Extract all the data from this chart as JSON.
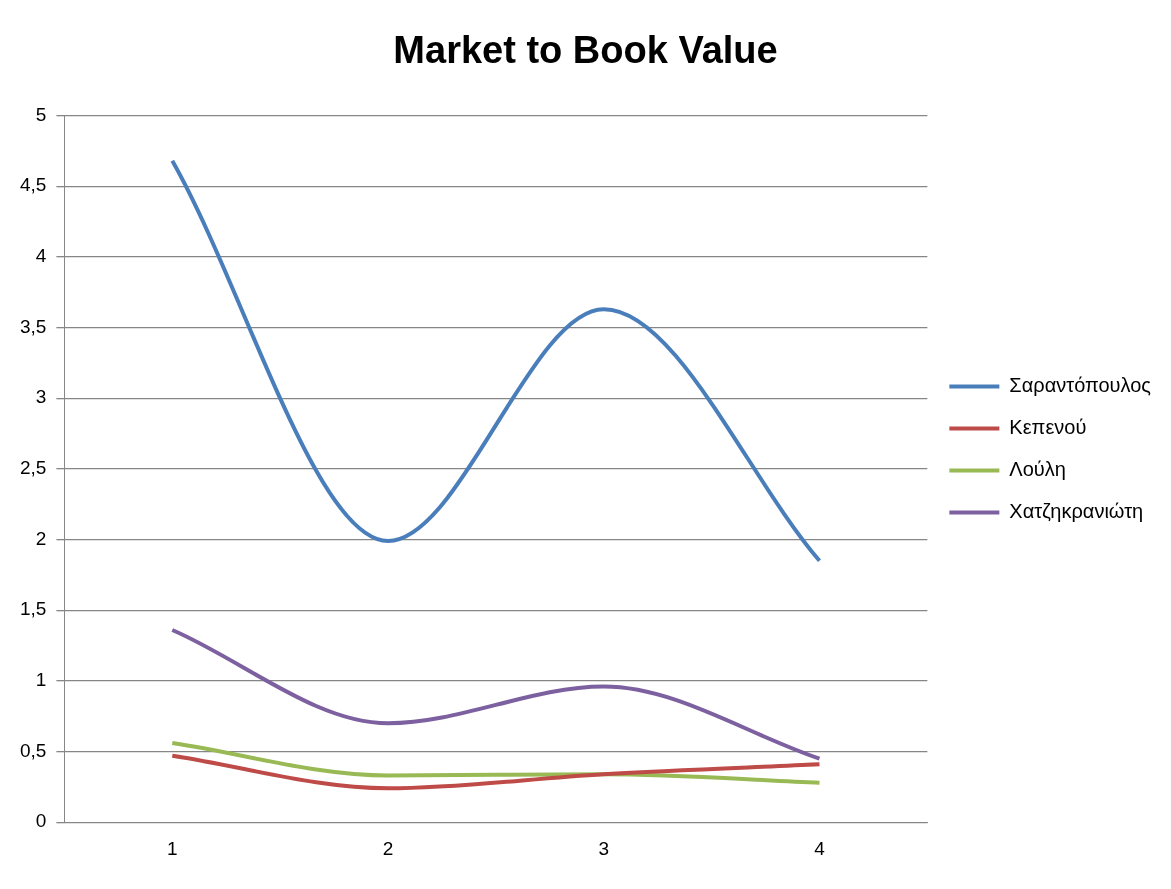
{
  "chart_data": {
    "type": "line",
    "title": "Market to Book Value",
    "categories": [
      "1",
      "2",
      "3",
      "4"
    ],
    "series": [
      {
        "name": "Σαραντόπουλος",
        "color": "#4a7ebb",
        "values": [
          4.68,
          1.99,
          3.63,
          1.85
        ]
      },
      {
        "name": "Κεπενού",
        "color": "#be4b48",
        "values": [
          0.47,
          0.24,
          0.34,
          0.41
        ]
      },
      {
        "name": "Λούλη",
        "color": "#98b954",
        "values": [
          0.56,
          0.33,
          0.34,
          0.28
        ]
      },
      {
        "name": "Χατζηκρανιώτη",
        "color": "#7d60a0",
        "values": [
          1.36,
          0.7,
          0.96,
          0.45
        ]
      }
    ],
    "ylim": [
      0,
      5
    ],
    "yticks": [
      0,
      {
        "value": 0.5,
        "label": "0,5"
      },
      1,
      {
        "value": 1.5,
        "label": "1,5"
      },
      2,
      {
        "value": 2.5,
        "label": "2,5"
      },
      3,
      {
        "value": 3.5,
        "label": "3,5"
      },
      4,
      {
        "value": 4.5,
        "label": "4,5"
      },
      5
    ],
    "grid": "y",
    "legend": "right",
    "marker": "none",
    "line_style": "solid"
  }
}
